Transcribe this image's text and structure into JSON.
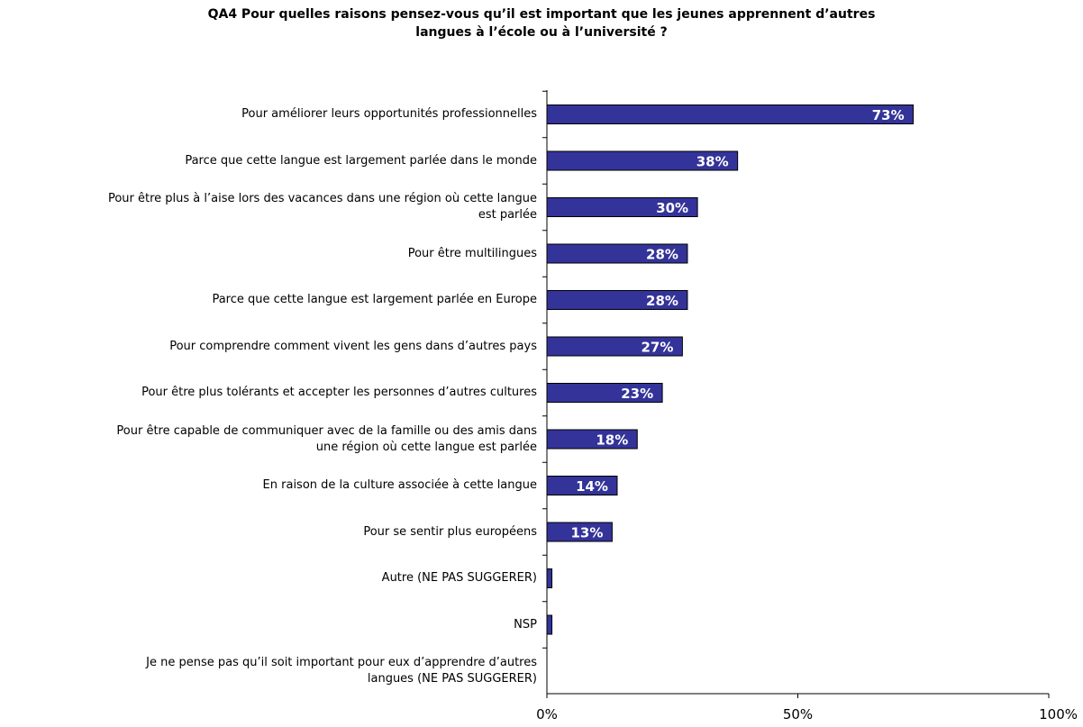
{
  "title_lines": [
    "QA4 Pour quelles raisons pensez-vous qu’il est important que les jeunes apprennent d’autres",
    "langues à l’école ou à l’université ?"
  ],
  "colors": {
    "bar": "#333399",
    "bar_stroke": "#000000",
    "axis": "#000000"
  },
  "chart_data": {
    "type": "bar",
    "orientation": "horizontal",
    "categories": [
      [
        "Pour améliorer leurs opportunités professionnelles"
      ],
      [
        "Parce que cette langue est largement parlée dans le monde"
      ],
      [
        "Pour être plus à l’aise lors des vacances dans une région où cette langue",
        "est parlée"
      ],
      [
        "Pour être multilingues"
      ],
      [
        "Parce que cette langue est largement parlée en Europe"
      ],
      [
        "Pour comprendre comment vivent les gens dans d’autres pays"
      ],
      [
        "Pour être plus tolérants et accepter les personnes d’autres cultures"
      ],
      [
        "Pour être capable de communiquer avec de la famille ou des amis dans",
        "une région où cette langue est parlée"
      ],
      [
        "En raison de la culture associée à cette langue"
      ],
      [
        "Pour se sentir plus européens"
      ],
      [
        "Autre (NE PAS SUGGERER)"
      ],
      [
        "NSP"
      ],
      [
        "Je ne pense pas qu’il soit important pour eux d’apprendre d’autres",
        "langues (NE PAS SUGGERER)"
      ]
    ],
    "values": [
      73,
      38,
      30,
      28,
      28,
      27,
      23,
      18,
      14,
      13,
      1,
      1,
      0
    ],
    "data_labels": [
      "73%",
      "38%",
      "30%",
      "28%",
      "28%",
      "27%",
      "23%",
      "18%",
      "14%",
      "13%",
      "",
      "",
      ""
    ],
    "xlim": [
      0,
      100
    ],
    "x_ticks": [
      0,
      50,
      100
    ],
    "x_tick_labels": [
      "0%",
      "50%",
      "100%"
    ],
    "grid": false,
    "legend": "none"
  }
}
